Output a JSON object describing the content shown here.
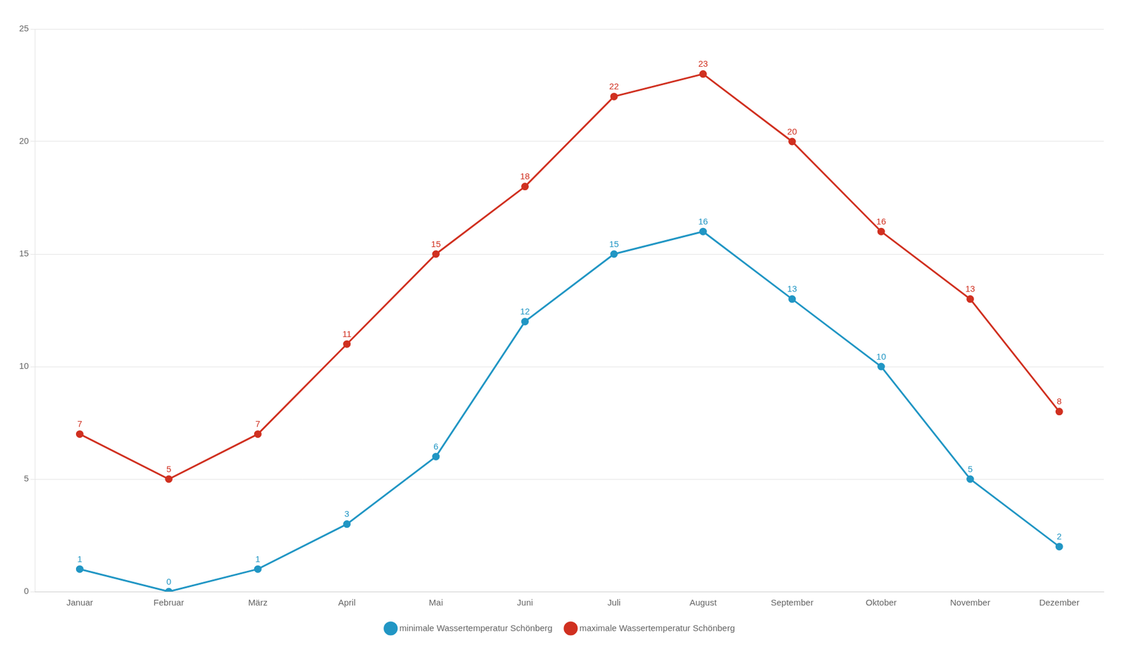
{
  "chart_data": {
    "type": "line",
    "categories": [
      "Januar",
      "Februar",
      "März",
      "April",
      "Mai",
      "Juni",
      "Juli",
      "August",
      "September",
      "Oktober",
      "November",
      "Dezember"
    ],
    "series": [
      {
        "name": "minimale Wassertemperatur Schönberg",
        "color": "#2196C4",
        "values": [
          1,
          0,
          1,
          3,
          6,
          12,
          15,
          16,
          13,
          10,
          5,
          2
        ]
      },
      {
        "name": "maximale Wassertemperatur Schönberg",
        "color": "#D03020",
        "values": [
          7,
          5,
          7,
          11,
          15,
          18,
          22,
          23,
          20,
          16,
          13,
          8
        ]
      }
    ],
    "ylim": [
      0,
      25
    ],
    "yticks": [
      0,
      5,
      10,
      15,
      20,
      25
    ],
    "grid": "y",
    "legend": "bottom",
    "data_labels": true,
    "marker": "circle"
  }
}
